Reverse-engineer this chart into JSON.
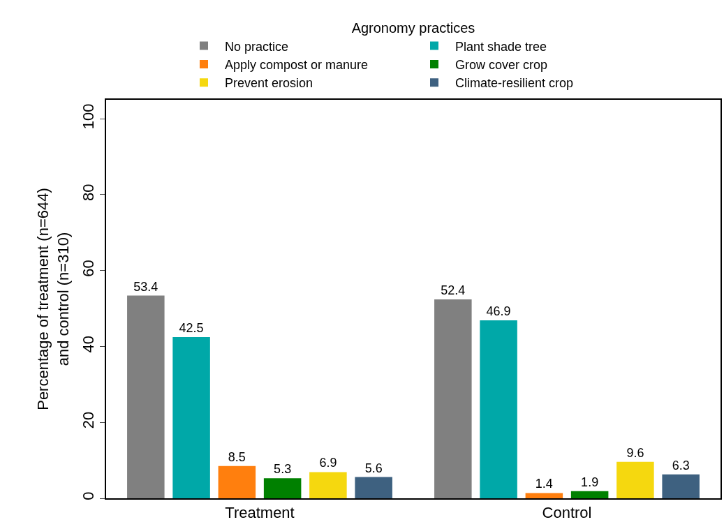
{
  "chart_data": {
    "type": "bar",
    "legend_title": "Agronomy practices",
    "ylabel": "Percentage of treatment (n=644)\nand control (n=310)",
    "categories": [
      "Treatment",
      "Control"
    ],
    "series": [
      {
        "name": "No practice",
        "color": "#808080",
        "values": [
          53.4,
          52.4
        ]
      },
      {
        "name": "Plant shade tree",
        "color": "#00a8a8",
        "values": [
          42.5,
          46.9
        ]
      },
      {
        "name": "Apply compost or manure",
        "color": "#ff7f0e",
        "values": [
          8.5,
          1.4
        ]
      },
      {
        "name": "Grow cover crop",
        "color": "#008000",
        "values": [
          5.3,
          1.9
        ]
      },
      {
        "name": "Prevent erosion",
        "color": "#f5d80f",
        "values": [
          6.9,
          9.6
        ]
      },
      {
        "name": "Climate-resilient crop",
        "color": "#3e6180",
        "values": [
          5.6,
          6.3
        ]
      }
    ],
    "ylim": [
      0,
      105
    ],
    "yticks": [
      0,
      20,
      40,
      60,
      80,
      100
    ],
    "grid": false,
    "legend": "top",
    "data_labels": true
  }
}
